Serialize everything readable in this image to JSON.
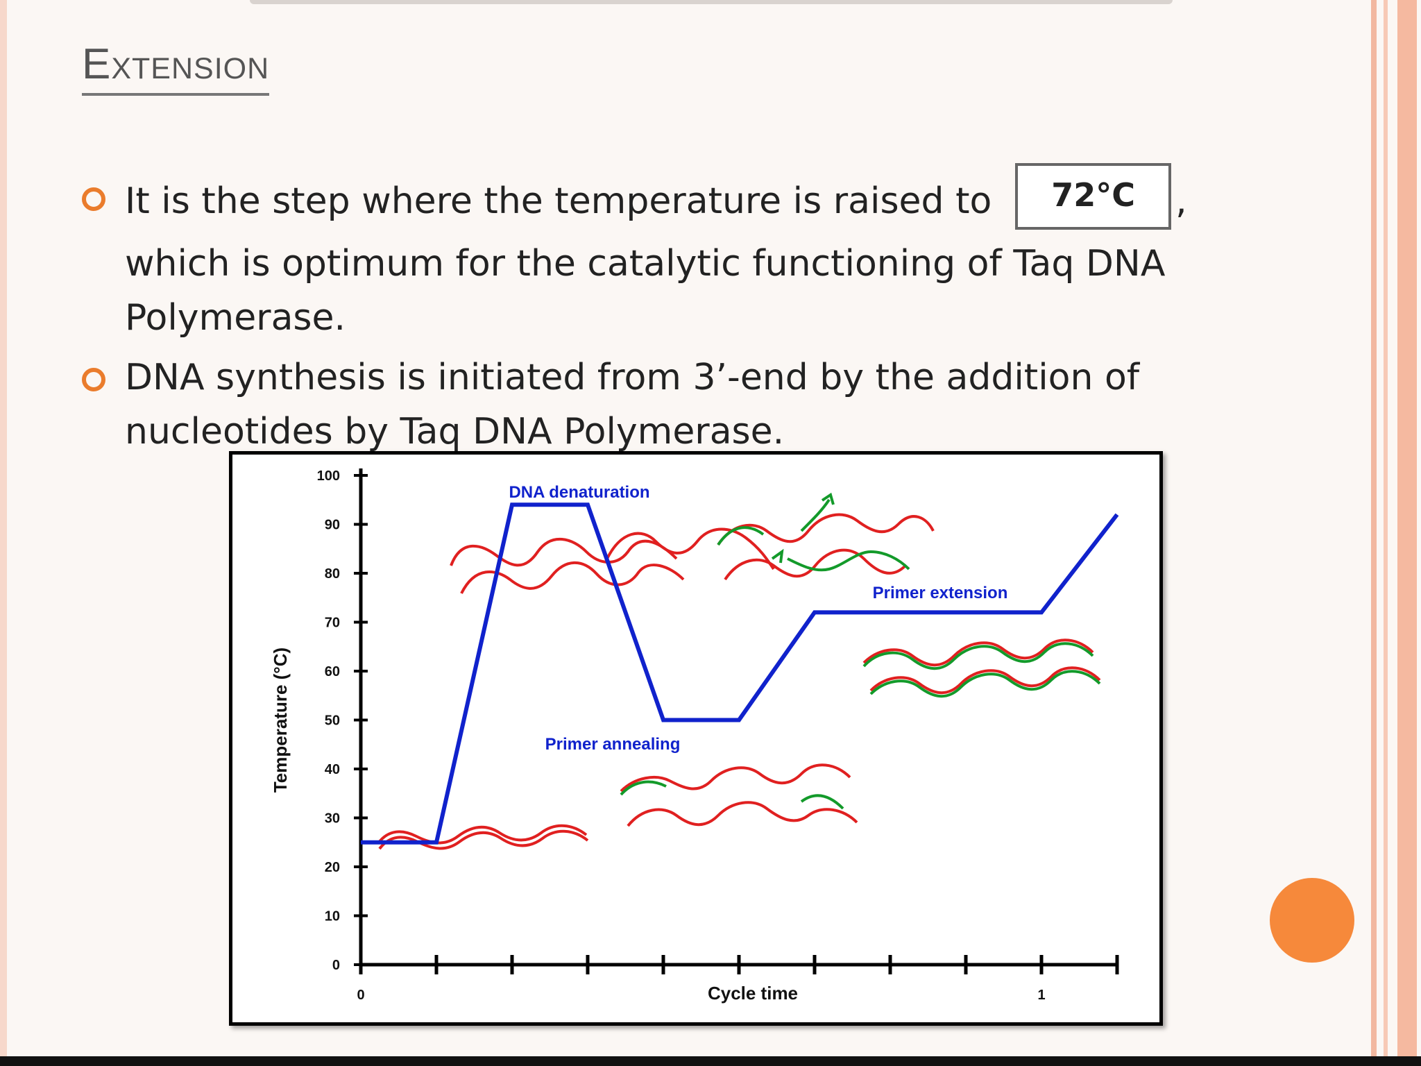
{
  "slide": {
    "title": "Extension",
    "bullets": [
      {
        "before": "It is the step where the temperature is raised to",
        "highlight": "72°C",
        "after": ", which is optimum for the catalytic functioning of Taq DNA Polymerase."
      },
      {
        "text": "DNA synthesis is initiated from 3’-end by the addition of nucleotides by Taq DNA Polymerase."
      }
    ],
    "colors": {
      "bullet": "#ea7c2c",
      "accent_dot": "#f6893b",
      "curve": "#1022cc",
      "strand": "#e02020",
      "primer": "#139a2a"
    }
  },
  "chart_data": {
    "type": "line",
    "title": "",
    "xlabel": "Cycle time",
    "ylabel": "Temperature (°C)",
    "ylim": [
      0,
      100
    ],
    "yticks": [
      0,
      10,
      20,
      30,
      40,
      50,
      60,
      70,
      80,
      90,
      100
    ],
    "xlim": [
      0,
      1
    ],
    "xtick_labels": [
      {
        "x": 0,
        "label": "0"
      },
      {
        "x": 0.9,
        "label": "1"
      }
    ],
    "xtick_count": 11,
    "series": [
      {
        "values_xy": [
          [
            0,
            25
          ],
          [
            0.1,
            25
          ],
          [
            0.2,
            94
          ],
          [
            0.3,
            94
          ],
          [
            0.4,
            50
          ],
          [
            0.5,
            50
          ],
          [
            0.6,
            72
          ],
          [
            0.9,
            72
          ],
          [
            1.0,
            92
          ]
        ]
      }
    ],
    "annotations": [
      {
        "text": "DNA denaturation"
      },
      {
        "text": "Primer annealing"
      },
      {
        "text": "Primer extension"
      }
    ]
  }
}
